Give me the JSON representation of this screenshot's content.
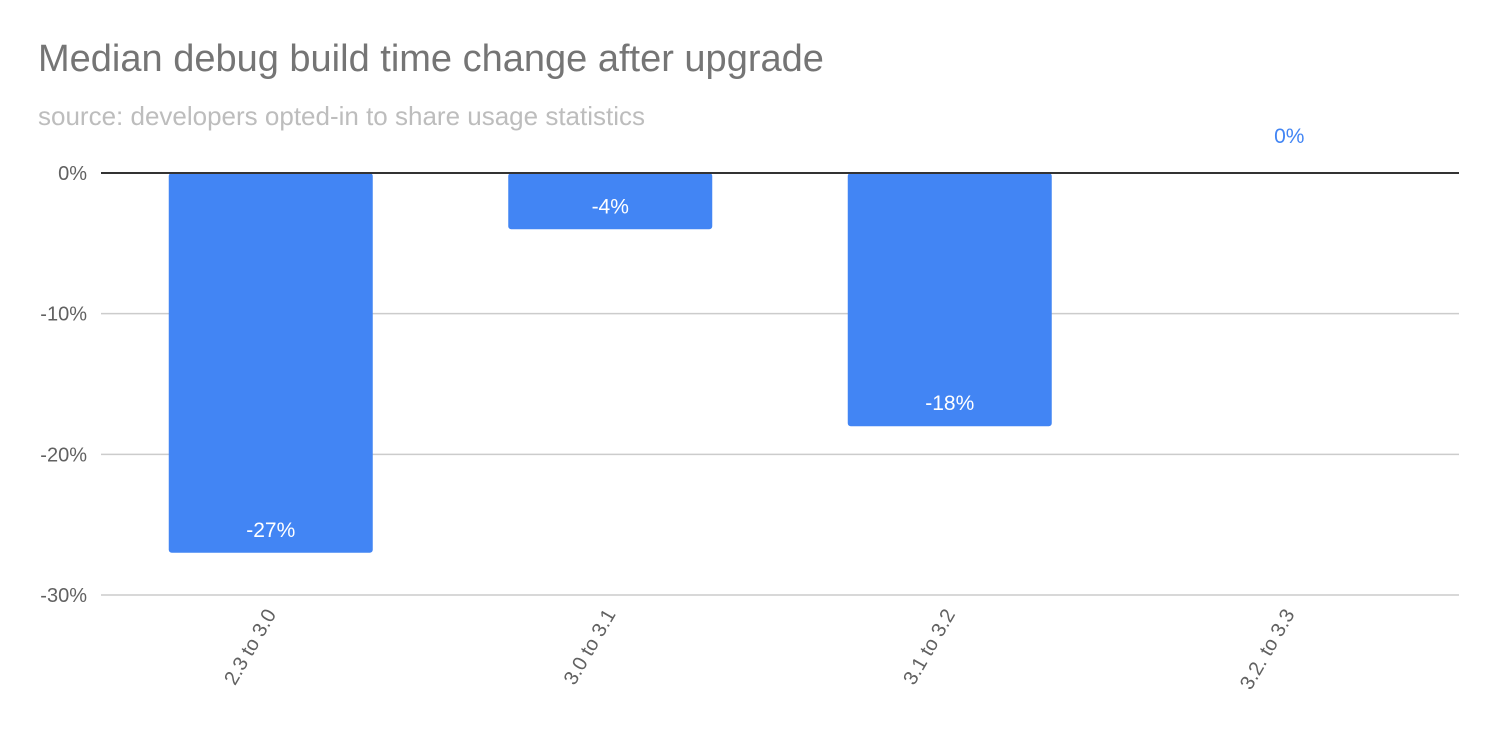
{
  "title": "Median debug build time change after upgrade",
  "subtitle": "source: developers opted-in to share usage statistics",
  "colors": {
    "bar": "#4285f4",
    "grid": "#cccccc",
    "zero_line": "#333333",
    "title": "#757575",
    "subtitle": "#bdbdbd"
  },
  "chart_data": {
    "type": "bar",
    "title": "Median debug build time change after upgrade",
    "subtitle": "source: developers opted-in to share usage statistics",
    "categories": [
      "2.3 to 3.0",
      "3.0 to 3.1",
      "3.1 to 3.2",
      "3.2. to 3.3"
    ],
    "values": [
      -27,
      -4,
      -18,
      0
    ],
    "data_labels": [
      "-27%",
      "-4%",
      "-18%",
      "0%"
    ],
    "yticks": [
      0,
      -10,
      -20,
      -30
    ],
    "ytick_labels": [
      "0%",
      "-10%",
      "-20%",
      "-30%"
    ],
    "ylim": [
      -30,
      0
    ],
    "xlabel": "",
    "ylabel": "",
    "grid": true,
    "legend": "none"
  }
}
